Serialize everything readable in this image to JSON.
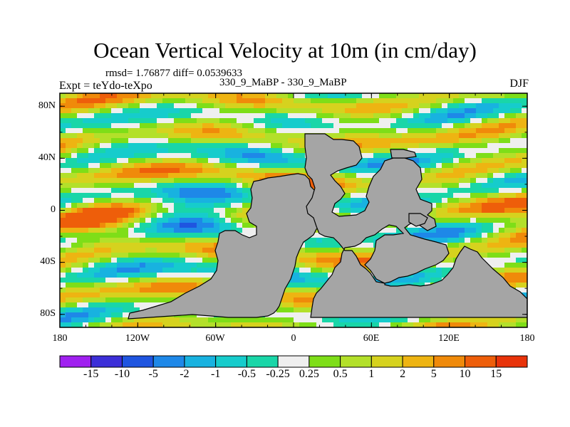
{
  "chart_data": {
    "type": "heatmap",
    "title": "Ocean Vertical Velocity at 10m (in cm/day)",
    "stats_text": "rmsd= 1.76877 diff= 0.0539633",
    "left_label": "Expt = teYdo-teXpo",
    "center_label": "330_9_MaBP - 330_9_MaBP",
    "right_label": "DJF",
    "x_ticks": [
      "180",
      "120W",
      "60W",
      "0",
      "60E",
      "120E",
      "180"
    ],
    "x_tick_values": [
      -180,
      -120,
      -60,
      0,
      60,
      120,
      180
    ],
    "y_ticks": [
      "80N",
      "40N",
      "0",
      "40S",
      "80S"
    ],
    "y_tick_values": [
      80,
      40,
      0,
      -40,
      -80
    ],
    "xlim": [
      -180,
      180
    ],
    "ylim": [
      -90,
      90
    ],
    "colorbar": {
      "labels": [
        "-15",
        "-10",
        "-5",
        "-2",
        "-1",
        "-0.5",
        "-0.25",
        "0.25",
        "0.5",
        "1",
        "2",
        "5",
        "10",
        "15"
      ],
      "colors": [
        "#a020f0",
        "#3c2fd8",
        "#1f55e0",
        "#1e88e8",
        "#18b2e0",
        "#16cccc",
        "#19d6a8",
        "#efefef",
        "#7ede18",
        "#b3e02a",
        "#d6d21e",
        "#eeb412",
        "#f08a0a",
        "#ee5e0a",
        "#e8330a"
      ]
    }
  }
}
